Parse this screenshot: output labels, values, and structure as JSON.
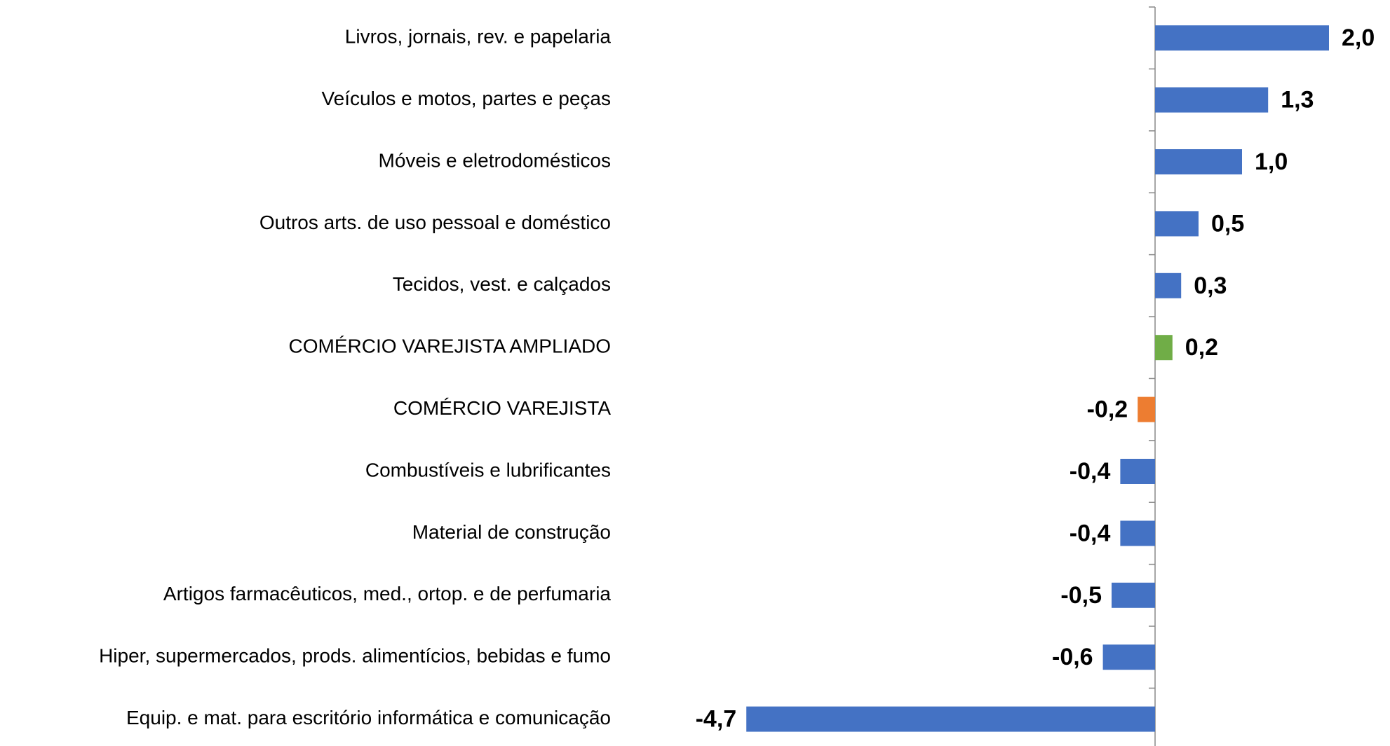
{
  "chart_data": {
    "type": "bar",
    "orientation": "horizontal",
    "categories": [
      "Livros, jornais, rev. e papelaria",
      "Veículos e motos, partes e peças",
      "Móveis e eletrodomésticos",
      "Outros arts. de uso pessoal e doméstico",
      "Tecidos, vest. e calçados",
      "COMÉRCIO VAREJISTA AMPLIADO",
      "COMÉRCIO VAREJISTA",
      "Combustíveis e lubrificantes",
      "Material de construção",
      "Artigos farmacêuticos, med., ortop. e de perfumaria",
      "Hiper, supermercados, prods.  alimentícios, bebidas e fumo",
      "Equip. e mat. para escritório informática e comunicação"
    ],
    "values": [
      2.0,
      1.3,
      1.0,
      0.5,
      0.3,
      0.2,
      -0.2,
      -0.4,
      -0.4,
      -0.5,
      -0.6,
      -4.7
    ],
    "value_labels": [
      "2,0",
      "1,3",
      "1,0",
      "0,5",
      "0,3",
      "0,2",
      "-0,2",
      "-0,4",
      "-0,4",
      "-0,5",
      "-0,6",
      "-4,7"
    ],
    "colors": [
      "#4472c4",
      "#4472c4",
      "#4472c4",
      "#4472c4",
      "#4472c4",
      "#70ad47",
      "#ed7d31",
      "#4472c4",
      "#4472c4",
      "#4472c4",
      "#4472c4",
      "#4472c4"
    ]
  }
}
